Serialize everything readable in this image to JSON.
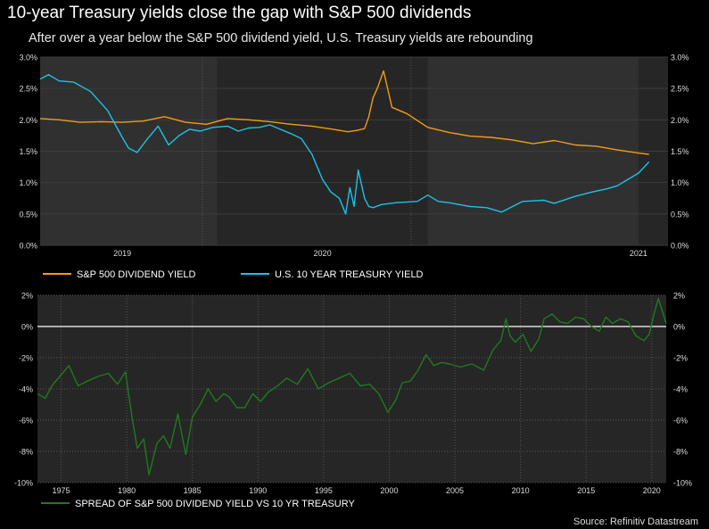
{
  "title": "10-year Treasury yields close the gap with S&P 500 dividends",
  "subtitle": "After over a year below the S&P 500 dividend yield, U.S. Treasury yields are rebounding",
  "source": "Source: Refinitiv Datastream",
  "colors": {
    "dividend": "#F39C12",
    "treasury": "#1CC2E8",
    "spread": "#1E7A1E",
    "panel": "#262626"
  },
  "chart_data": [
    {
      "type": "line",
      "x_ticks": [
        "2019",
        "2020",
        "2021"
      ],
      "y_ticks": [
        "0.0%",
        "0.5%",
        "1.0%",
        "1.5%",
        "2.0%",
        "2.5%",
        "3.0%"
      ],
      "ylim": [
        0,
        3
      ],
      "xlim": [
        2018.16,
        2021.14
      ],
      "legend_position": "bottom-left",
      "series": [
        {
          "name": "S&P 500 DIVIDEND YIELD",
          "color": "#F39C12",
          "x": [
            2018.16,
            2018.25,
            2018.35,
            2018.45,
            2018.55,
            2018.65,
            2018.75,
            2018.85,
            2018.95,
            2019.05,
            2019.15,
            2019.25,
            2019.35,
            2019.45,
            2019.55,
            2019.62,
            2019.66,
            2019.7,
            2019.72,
            2019.74,
            2019.76,
            2019.79,
            2019.83,
            2019.9,
            2020.0,
            2020.1,
            2020.2,
            2020.3,
            2020.4,
            2020.5,
            2020.6,
            2020.7,
            2020.8,
            2020.9,
            2021.0,
            2021.05
          ],
          "y": [
            2.02,
            2.0,
            1.96,
            1.97,
            1.96,
            1.98,
            2.05,
            1.96,
            1.93,
            2.02,
            2.0,
            1.97,
            1.93,
            1.9,
            1.85,
            1.81,
            1.83,
            1.86,
            2.05,
            2.35,
            2.5,
            2.78,
            2.2,
            2.1,
            1.88,
            1.8,
            1.74,
            1.72,
            1.68,
            1.62,
            1.67,
            1.6,
            1.58,
            1.52,
            1.47,
            1.45
          ]
        },
        {
          "name": "U.S. 10 YEAR TREASURY YIELD",
          "color": "#1CC2E8",
          "x": [
            2018.16,
            2018.2,
            2018.25,
            2018.32,
            2018.4,
            2018.48,
            2018.55,
            2018.58,
            2018.62,
            2018.67,
            2018.72,
            2018.77,
            2018.82,
            2018.87,
            2018.92,
            2018.98,
            2019.05,
            2019.1,
            2019.15,
            2019.2,
            2019.25,
            2019.3,
            2019.35,
            2019.4,
            2019.45,
            2019.5,
            2019.54,
            2019.58,
            2019.61,
            2019.63,
            2019.65,
            2019.67,
            2019.7,
            2019.72,
            2019.74,
            2019.78,
            2019.85,
            2019.95,
            2020.0,
            2020.05,
            2020.1,
            2020.15,
            2020.2,
            2020.28,
            2020.35,
            2020.45,
            2020.55,
            2020.6,
            2020.7,
            2020.78,
            2020.85,
            2020.9,
            2020.95,
            2021.0,
            2021.05
          ],
          "y": [
            2.65,
            2.72,
            2.62,
            2.6,
            2.45,
            2.15,
            1.72,
            1.55,
            1.48,
            1.7,
            1.9,
            1.6,
            1.75,
            1.85,
            1.82,
            1.88,
            1.9,
            1.82,
            1.87,
            1.88,
            1.92,
            1.85,
            1.78,
            1.7,
            1.45,
            1.05,
            0.85,
            0.75,
            0.5,
            0.92,
            0.62,
            1.2,
            0.75,
            0.62,
            0.6,
            0.65,
            0.68,
            0.7,
            0.8,
            0.7,
            0.68,
            0.65,
            0.62,
            0.6,
            0.53,
            0.7,
            0.72,
            0.67,
            0.78,
            0.85,
            0.9,
            0.95,
            1.05,
            1.15,
            1.33
          ]
        }
      ]
    },
    {
      "type": "line",
      "x_ticks": [
        "1975",
        "1980",
        "1985",
        "1990",
        "1995",
        "2000",
        "2005",
        "2010",
        "2015",
        "2020"
      ],
      "y_ticks": [
        "2%",
        "0%",
        "-2%",
        "-4%",
        "-6%",
        "-8%",
        "-10%"
      ],
      "ylim": [
        -10,
        2
      ],
      "xlim": [
        1973.2,
        2021.1
      ],
      "legend_position": "bottom-left",
      "series": [
        {
          "name": "SPREAD OF S&P 500 DIVIDEND YIELD VS 10 YR TREASURY",
          "color": "#1E7A1E",
          "x": [
            1973.2,
            1973.8,
            1974.3,
            1974.9,
            1975.6,
            1976.3,
            1977.0,
            1977.8,
            1978.6,
            1979.3,
            1979.9,
            1980.4,
            1980.8,
            1981.3,
            1981.7,
            1982.3,
            1982.8,
            1983.3,
            1983.9,
            1984.5,
            1985.0,
            1985.6,
            1986.2,
            1986.8,
            1987.4,
            1987.8,
            1988.4,
            1989.0,
            1989.6,
            1990.2,
            1990.8,
            1991.5,
            1992.2,
            1993.0,
            1993.8,
            1994.6,
            1995.4,
            1996.2,
            1997.0,
            1997.8,
            1998.5,
            1999.2,
            1999.9,
            2000.5,
            2001.0,
            2001.6,
            2002.2,
            2002.8,
            2003.4,
            2004.0,
            2004.6,
            2005.4,
            2006.3,
            2007.2,
            2007.9,
            2008.5,
            2008.9,
            2009.2,
            2009.6,
            2010.2,
            2010.8,
            2011.4,
            2011.8,
            2012.4,
            2013.0,
            2013.6,
            2014.2,
            2014.8,
            2015.4,
            2016.0,
            2016.5,
            2017.0,
            2017.6,
            2018.2,
            2018.8,
            2019.4,
            2019.8,
            2020.2,
            2020.5,
            2020.8,
            2021.1
          ],
          "y": [
            -4.3,
            -4.6,
            -3.8,
            -3.2,
            -2.5,
            -3.8,
            -3.5,
            -3.2,
            -3.0,
            -3.7,
            -2.9,
            -5.8,
            -7.8,
            -7.2,
            -9.5,
            -7.5,
            -7.0,
            -7.8,
            -5.6,
            -8.2,
            -5.8,
            -5.0,
            -4.0,
            -4.8,
            -4.3,
            -4.5,
            -5.2,
            -5.2,
            -4.3,
            -4.8,
            -4.2,
            -3.8,
            -3.3,
            -3.7,
            -2.7,
            -4.0,
            -3.6,
            -3.3,
            -3.0,
            -3.8,
            -3.7,
            -4.3,
            -5.5,
            -4.7,
            -3.6,
            -3.5,
            -2.8,
            -1.8,
            -2.5,
            -2.3,
            -2.4,
            -2.6,
            -2.4,
            -2.8,
            -1.5,
            -0.9,
            0.5,
            -0.6,
            -1.0,
            -0.5,
            -1.6,
            -0.8,
            0.5,
            0.8,
            0.3,
            0.2,
            0.6,
            0.5,
            0.0,
            -0.3,
            0.6,
            0.2,
            0.5,
            0.3,
            -0.6,
            -0.9,
            -0.5,
            0.9,
            1.8,
            1.0,
            0.2
          ]
        }
      ]
    }
  ]
}
